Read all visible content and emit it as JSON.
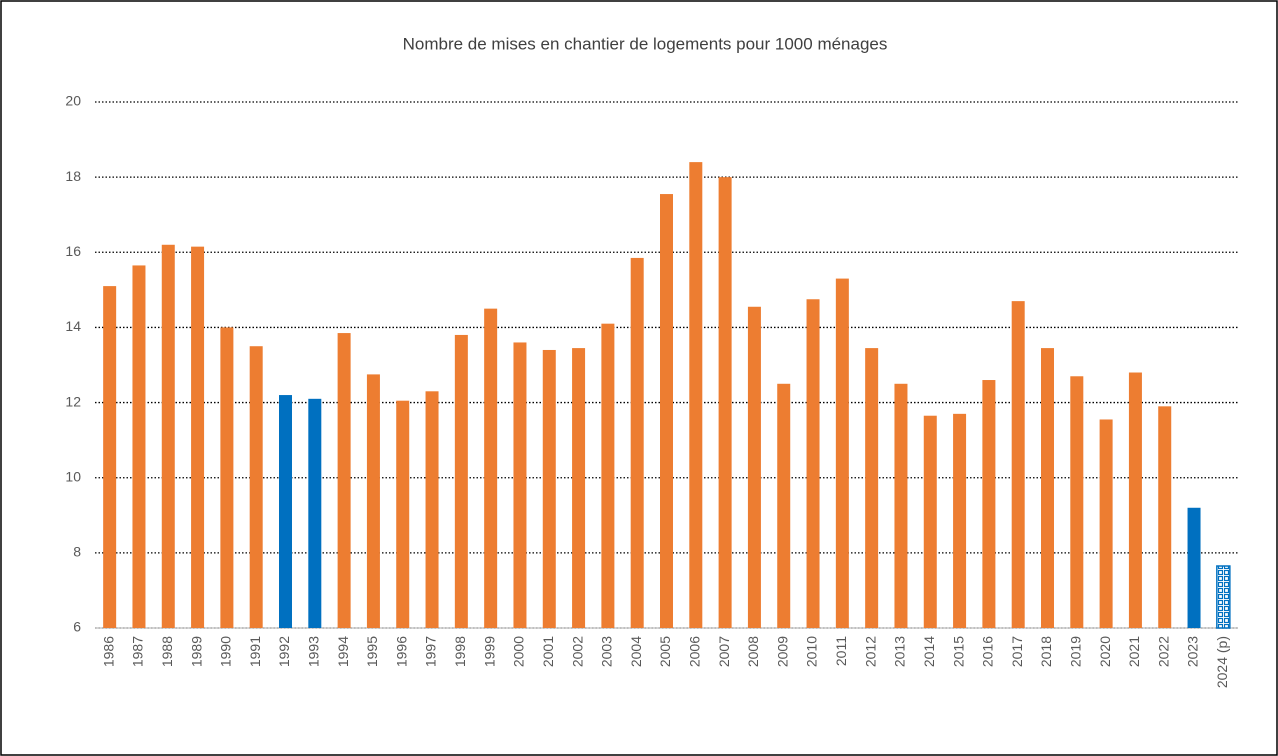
{
  "chart_data": {
    "type": "bar",
    "title": "Nombre de mises en chantier de logements pour 1000 ménages",
    "categories": [
      "1986",
      "1987",
      "1988",
      "1989",
      "1990",
      "1991",
      "1992",
      "1993",
      "1994",
      "1995",
      "1996",
      "1997",
      "1998",
      "1999",
      "2000",
      "2001",
      "2002",
      "2003",
      "2004",
      "2005",
      "2006",
      "2007",
      "2008",
      "2009",
      "2010",
      "2011",
      "2012",
      "2013",
      "2014",
      "2015",
      "2016",
      "2017",
      "2018",
      "2019",
      "2020",
      "2021",
      "2022",
      "2023",
      "2024 (p)"
    ],
    "values": [
      15.1,
      15.65,
      16.2,
      16.15,
      14.0,
      13.5,
      12.2,
      12.1,
      13.85,
      12.75,
      12.05,
      12.3,
      13.8,
      14.5,
      13.6,
      13.4,
      13.45,
      14.1,
      15.85,
      17.55,
      18.4,
      18.0,
      14.55,
      12.5,
      14.75,
      15.3,
      13.45,
      12.5,
      11.65,
      11.7,
      12.6,
      14.7,
      13.45,
      12.7,
      11.55,
      12.8,
      11.9,
      9.2,
      7.65
    ],
    "colors": [
      "#ED7D31",
      "#ED7D31",
      "#ED7D31",
      "#ED7D31",
      "#ED7D31",
      "#ED7D31",
      "#0070C0",
      "#0070C0",
      "#ED7D31",
      "#ED7D31",
      "#ED7D31",
      "#ED7D31",
      "#ED7D31",
      "#ED7D31",
      "#ED7D31",
      "#ED7D31",
      "#ED7D31",
      "#ED7D31",
      "#ED7D31",
      "#ED7D31",
      "#ED7D31",
      "#ED7D31",
      "#ED7D31",
      "#ED7D31",
      "#ED7D31",
      "#ED7D31",
      "#ED7D31",
      "#ED7D31",
      "#ED7D31",
      "#ED7D31",
      "#ED7D31",
      "#ED7D31",
      "#ED7D31",
      "#ED7D31",
      "#ED7D31",
      "#ED7D31",
      "#ED7D31",
      "#0070C0",
      "#0070C0"
    ],
    "fills": [
      "solid",
      "solid",
      "solid",
      "solid",
      "solid",
      "solid",
      "solid",
      "solid",
      "solid",
      "solid",
      "solid",
      "solid",
      "solid",
      "solid",
      "solid",
      "solid",
      "solid",
      "solid",
      "solid",
      "solid",
      "solid",
      "solid",
      "solid",
      "solid",
      "solid",
      "solid",
      "solid",
      "solid",
      "solid",
      "solid",
      "solid",
      "solid",
      "solid",
      "solid",
      "solid",
      "solid",
      "solid",
      "solid",
      "pattern"
    ],
    "ylim": [
      6,
      20
    ],
    "yticks": [
      6,
      8,
      10,
      12,
      14,
      16,
      18,
      20
    ],
    "grid": true
  }
}
